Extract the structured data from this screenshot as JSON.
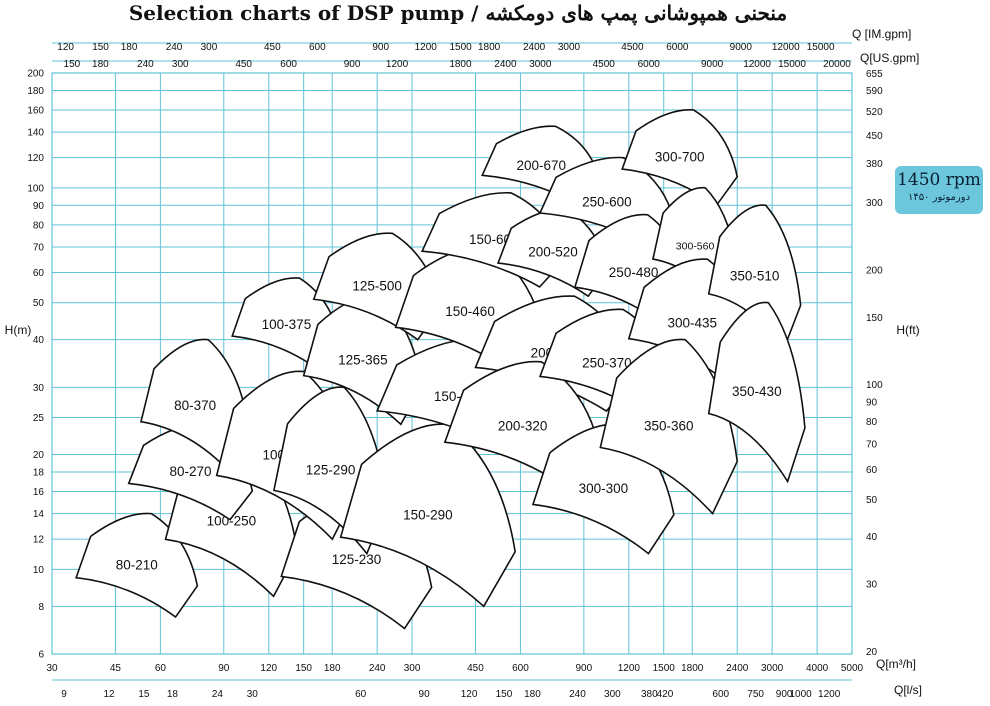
{
  "chart_data": {
    "type": "area",
    "title": "Selection charts of DSP pump / منحنی همپوشانی پمپ های دومکشه",
    "badge": {
      "speed": "1450 rpm",
      "subtitle": "دورموتور ۱۴۵۰"
    },
    "xlabel_bottom": "Q[m³/h]",
    "xlabel_bottom2": "Q[l/s]",
    "xlabel_top": "Q [IM.gpm]",
    "xlabel_top2": "Q[US.gpm]",
    "ylabel_left": "H(m)",
    "ylabel_right": "H(ft)",
    "x_scale": "log",
    "y_scale": "log",
    "xlim": [
      30,
      5000
    ],
    "ylim": [
      6,
      200
    ],
    "grid": true,
    "x_ticks_m3h": [
      "30",
      "45",
      "60",
      "90",
      "120",
      "150",
      "180",
      "240",
      "300",
      "450",
      "600",
      "900",
      "1200",
      "1500",
      "1800",
      "2400",
      "3000",
      "4000",
      "5000"
    ],
    "x_ticks_ls": [
      "9",
      "12",
      "15",
      "18",
      "24",
      "30",
      "60",
      "90",
      "120",
      "150",
      "180",
      "240",
      "300",
      "380",
      "420",
      "600",
      "750",
      "900",
      "1000",
      "1200"
    ],
    "x_ticks_imgpm": [
      "120",
      "150",
      "180",
      "240",
      "300",
      "450",
      "600",
      "900",
      "1200",
      "1500",
      "1800",
      "2400",
      "3000",
      "4500",
      "6000",
      "9000",
      "12000",
      "15000"
    ],
    "x_ticks_usgpm": [
      "150",
      "180",
      "240",
      "300",
      "450",
      "600",
      "900",
      "1200",
      "1800",
      "2400",
      "3000",
      "4500",
      "6000",
      "9000",
      "12000",
      "15000",
      "20000"
    ],
    "y_ticks_m": [
      "6",
      "8",
      "10",
      "12",
      "14",
      "16",
      "18",
      "20",
      "25",
      "30",
      "40",
      "50",
      "60",
      "70",
      "80",
      "90",
      "100",
      "120",
      "140",
      "160",
      "180",
      "200"
    ],
    "y_ticks_ft": [
      "20",
      "30",
      "40",
      "50",
      "60",
      "70",
      "80",
      "90",
      "100",
      "150",
      "200",
      "300",
      "380",
      "450",
      "520",
      "590",
      "655"
    ],
    "models": [
      {
        "name": "80-210",
        "q_range_m3h": [
          35,
          76
        ],
        "h_range_m": [
          7.5,
          14
        ]
      },
      {
        "name": "100-250",
        "q_range_m3h": [
          62,
          144
        ],
        "h_range_m": [
          8.5,
          21
        ]
      },
      {
        "name": "125-230",
        "q_range_m3h": [
          130,
          340
        ],
        "h_range_m": [
          7,
          16
        ]
      },
      {
        "name": "80-270",
        "q_range_m3h": [
          49,
          108
        ],
        "h_range_m": [
          13.5,
          24
        ]
      },
      {
        "name": "80-370",
        "q_range_m3h": [
          53,
          106
        ],
        "h_range_m": [
          18,
          40
        ]
      },
      {
        "name": "100-310",
        "q_range_m3h": [
          86,
          212
        ],
        "h_range_m": [
          12,
          33
        ]
      },
      {
        "name": "125-290",
        "q_range_m3h": [
          124,
          256
        ],
        "h_range_m": [
          11,
          30
        ]
      },
      {
        "name": "150-290",
        "q_range_m3h": [
          190,
          580
        ],
        "h_range_m": [
          8,
          24
        ]
      },
      {
        "name": "100-375",
        "q_range_m3h": [
          95,
          190
        ],
        "h_range_m": [
          33,
          58
        ]
      },
      {
        "name": "125-365",
        "q_range_m3h": [
          150,
          320
        ],
        "h_range_m": [
          24,
          52
        ]
      },
      {
        "name": "150-360",
        "q_range_m3h": [
          240,
          680
        ],
        "h_range_m": [
          20,
          40
        ]
      },
      {
        "name": "125-500",
        "q_range_m3h": [
          160,
          360
        ],
        "h_range_m": [
          40,
          76
        ]
      },
      {
        "name": "150-460",
        "q_range_m3h": [
          270,
          700
        ],
        "h_range_m": [
          32,
          70
        ]
      },
      {
        "name": "150-605",
        "q_range_m3h": [
          320,
          800
        ],
        "h_range_m": [
          55,
          97
        ]
      },
      {
        "name": "200-670",
        "q_range_m3h": [
          470,
          1000
        ],
        "h_range_m": [
          90,
          145
        ]
      },
      {
        "name": "200-520",
        "q_range_m3h": [
          520,
          1050
        ],
        "h_range_m": [
          52,
          88
        ]
      },
      {
        "name": "200-420",
        "q_range_m3h": [
          450,
          1250
        ],
        "h_range_m": [
          26,
          52
        ]
      },
      {
        "name": "200-320",
        "q_range_m3h": [
          370,
          1000
        ],
        "h_range_m": [
          16,
          35
        ]
      },
      {
        "name": "250-600",
        "q_range_m3h": [
          680,
          1600
        ],
        "h_range_m": [
          70,
          120
        ]
      },
      {
        "name": "250-480",
        "q_range_m3h": [
          850,
          1800
        ],
        "h_range_m": [
          42,
          85
        ]
      },
      {
        "name": "250-370",
        "q_range_m3h": [
          680,
          1600
        ],
        "h_range_m": [
          25,
          48
        ]
      },
      {
        "name": "300-300",
        "q_range_m3h": [
          650,
          1600
        ],
        "h_range_m": [
          11,
          24
        ]
      },
      {
        "name": "300-700",
        "q_range_m3h": [
          1150,
          2400
        ],
        "h_range_m": [
          90,
          160
        ]
      },
      {
        "name": "300-560",
        "q_range_m3h": [
          1400,
          2400
        ],
        "h_range_m": [
          50,
          100
        ]
      },
      {
        "name": "300-435",
        "q_range_m3h": [
          1200,
          2700
        ],
        "h_range_m": [
          30,
          65
        ]
      },
      {
        "name": "350-360",
        "q_range_m3h": [
          1000,
          2400
        ],
        "h_range_m": [
          14,
          40
        ]
      },
      {
        "name": "350-510",
        "q_range_m3h": [
          2000,
          3600
        ],
        "h_range_m": [
          38,
          90
        ]
      },
      {
        "name": "350-430",
        "q_range_m3h": [
          2000,
          3700
        ],
        "h_range_m": [
          17,
          50
        ]
      }
    ]
  }
}
